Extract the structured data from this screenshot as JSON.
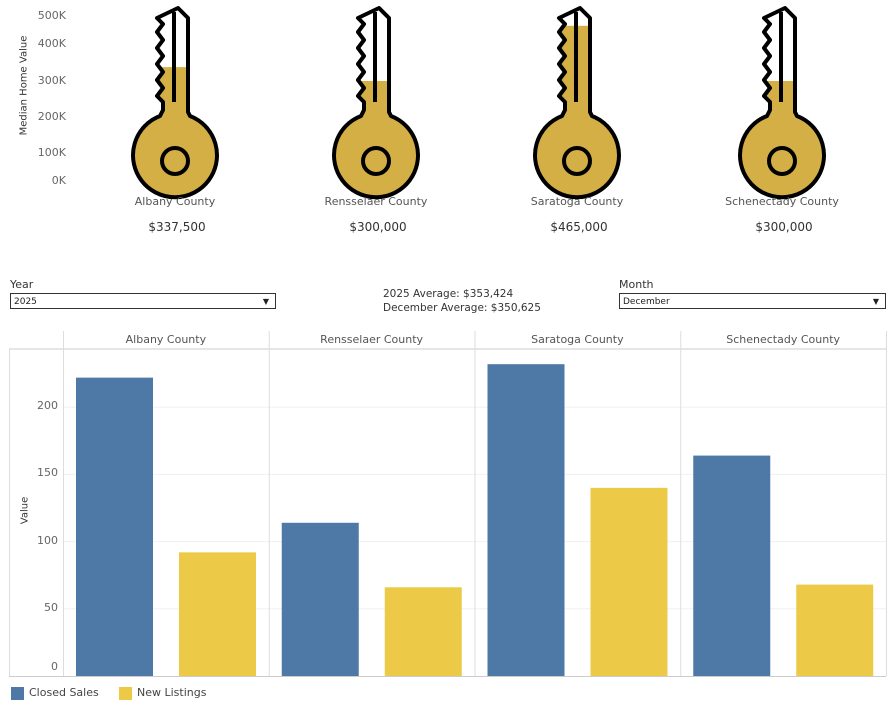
{
  "top_chart": {
    "type": "bar",
    "ylabel": "Median Home Value",
    "y_ticks": [
      "0K",
      "100K",
      "200K",
      "300K",
      "400K",
      "500K"
    ],
    "fill_color": "#d4af46",
    "counties": [
      {
        "name": "Albany County",
        "value": 337500,
        "label": "$337,500"
      },
      {
        "name": "Rensselaer County",
        "value": 300000,
        "label": "$300,000"
      },
      {
        "name": "Saratoga County",
        "value": 465000,
        "label": "$465,000"
      },
      {
        "name": "Schenectady County",
        "value": 300000,
        "label": "$300,000"
      }
    ]
  },
  "filters": {
    "year_label": "Year",
    "year_value": "2025",
    "month_label": "Month",
    "month_value": "December",
    "year_average": "2025 Average: $353,424",
    "month_average": "December Average: $350,625"
  },
  "chart_data": {
    "type": "bar",
    "ylabel": "Value",
    "ylim": [
      0,
      250
    ],
    "y_ticks": [
      0,
      50,
      100,
      150,
      200
    ],
    "categories": [
      "Albany County",
      "Rensselaer County",
      "Saratoga County",
      "Schenectady County"
    ],
    "series": [
      {
        "name": "Closed Sales",
        "color": "#4e79a7",
        "values": [
          222,
          114,
          232,
          164
        ]
      },
      {
        "name": "New Listings",
        "color": "#edc948",
        "values": [
          92,
          66,
          140,
          68
        ]
      }
    ],
    "legend_placement": "bottom-left",
    "grid": true
  }
}
